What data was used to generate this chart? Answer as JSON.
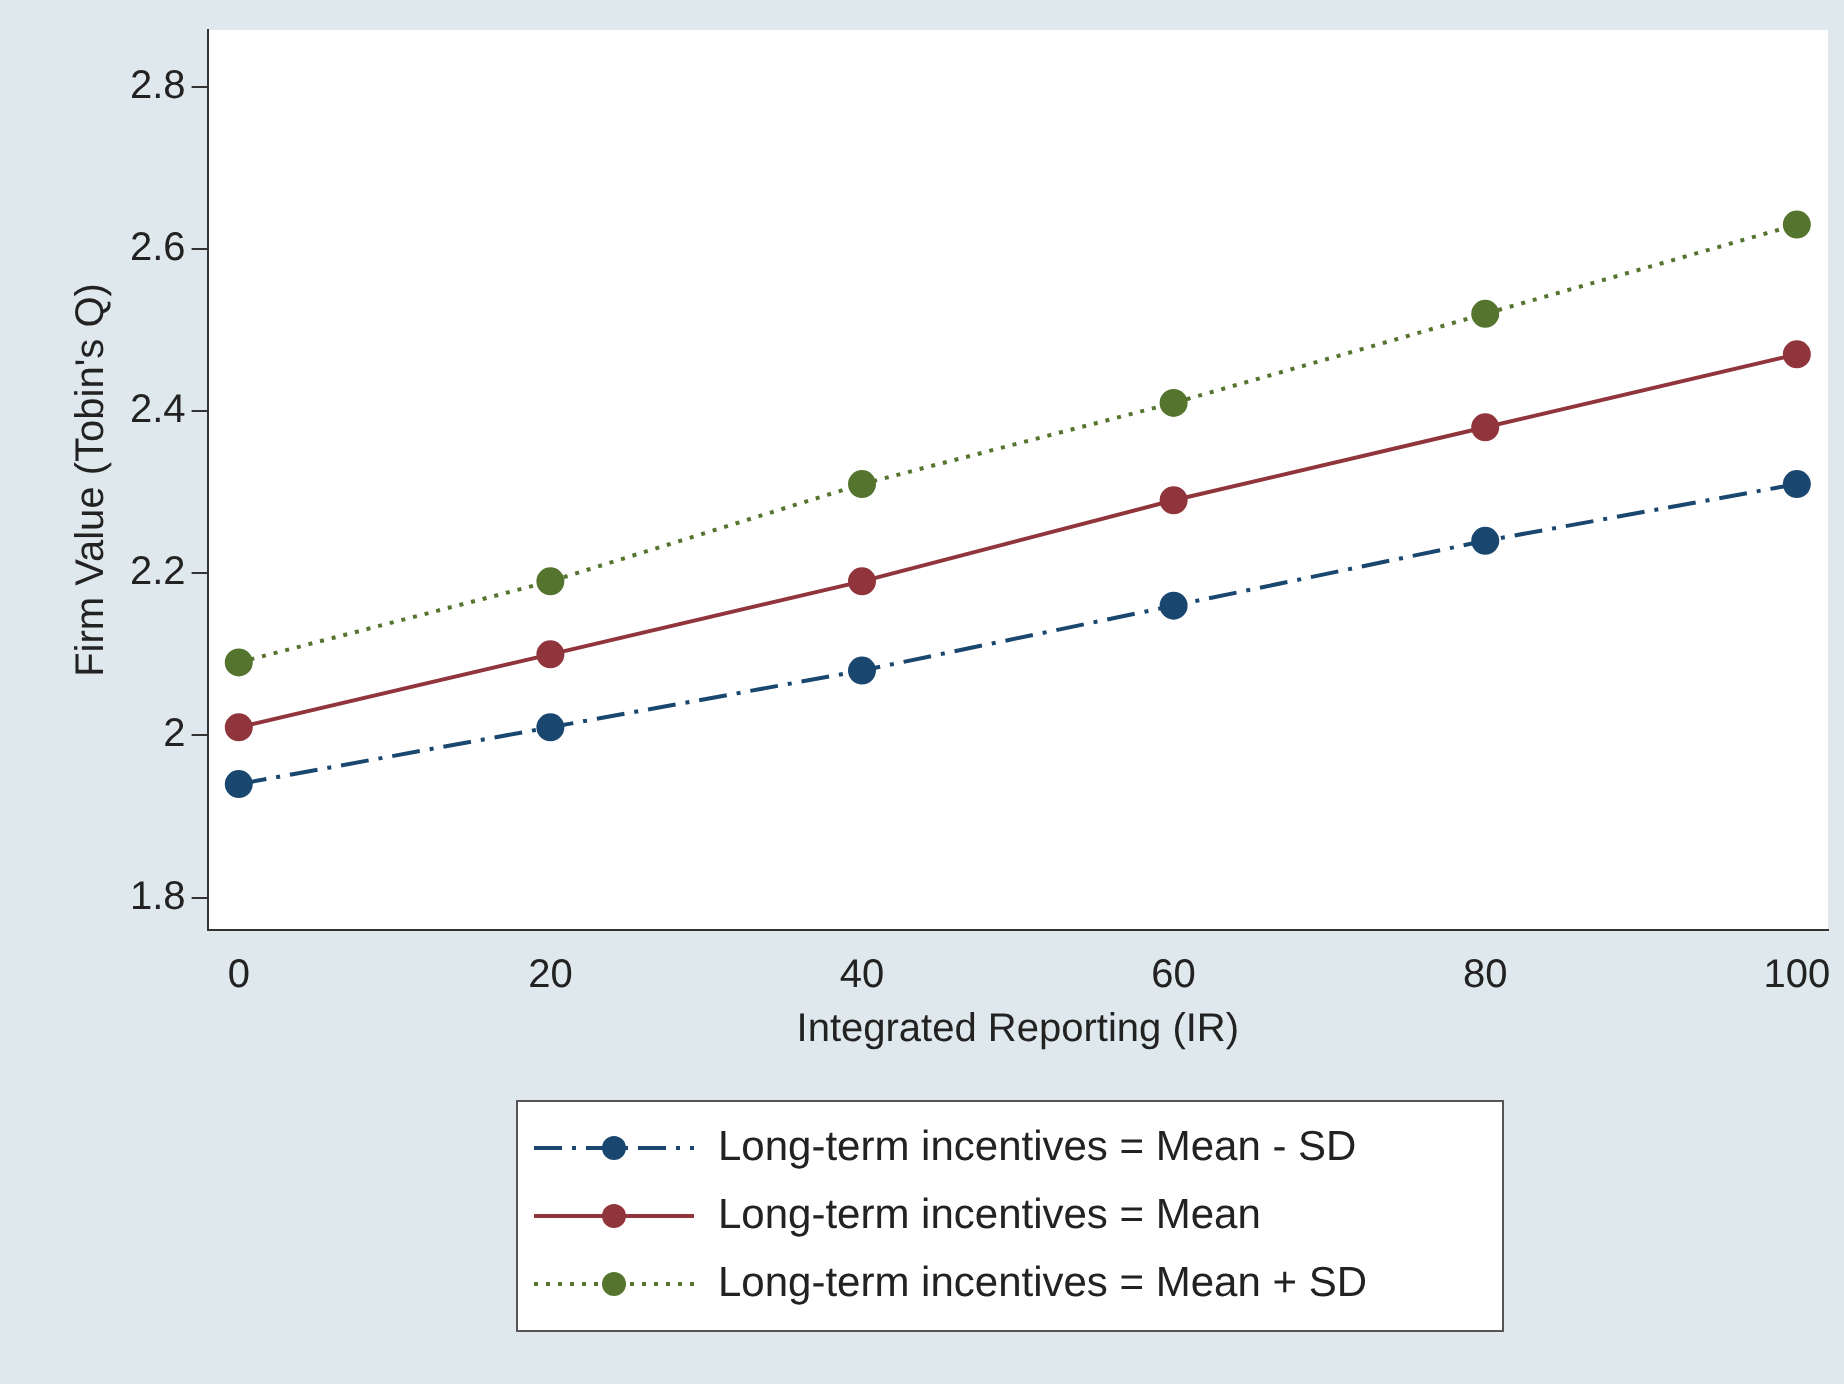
{
  "chart_data": {
    "type": "line",
    "xlabel": "Integrated Reporting (IR)",
    "ylabel": "Firm Value (Tobin's Q)",
    "x": [
      0,
      20,
      40,
      60,
      80,
      100
    ],
    "series": [
      {
        "name": "Long-term incentives = Mean - SD",
        "color": "#1a476f",
        "line_style": "dashed",
        "values": [
          1.94,
          2.01,
          2.08,
          2.16,
          2.24,
          2.31
        ]
      },
      {
        "name": "Long-term incentives = Mean",
        "color": "#90353b",
        "line_style": "solid",
        "values": [
          2.01,
          2.1,
          2.19,
          2.29,
          2.38,
          2.47
        ]
      },
      {
        "name": "Long-term incentives = Mean + SD",
        "color": "#55752f",
        "line_style": "dotted",
        "values": [
          2.09,
          2.19,
          2.31,
          2.41,
          2.52,
          2.63
        ]
      }
    ],
    "xlim": [
      -2,
      102
    ],
    "xticks": [
      0,
      20,
      40,
      60,
      80,
      100
    ],
    "ylim": [
      1.76,
      2.87
    ],
    "yticks": [
      1.8,
      2,
      2.2,
      2.4,
      2.6,
      2.8
    ],
    "grid": false,
    "marker": "circle",
    "legend": "bottom"
  }
}
